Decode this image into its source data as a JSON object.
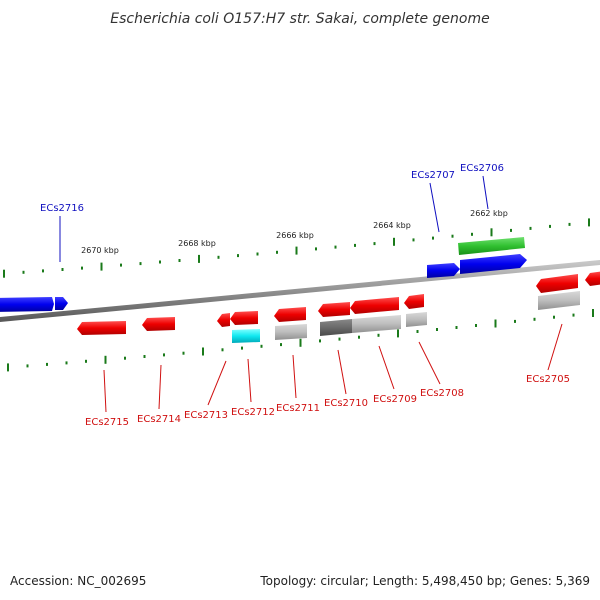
{
  "title": "Escherichia coli O157:H7 str. Sakai, complete genome",
  "footer": {
    "accession": "Accession: NC_002695",
    "summary": "Topology: circular; Length: 5,498,450 bp; Genes: 5,369"
  },
  "colors": {
    "forward_label": "#1010c0",
    "reverse_label": "#d01010",
    "ruler": "#1a7a1a",
    "backbone": "#888888"
  },
  "ruler_labels": [
    {
      "text": "2670 kbp"
    },
    {
      "text": "2668 kbp"
    },
    {
      "text": "2666 kbp"
    },
    {
      "text": "2664 kbp"
    },
    {
      "text": "2662 kbp"
    }
  ],
  "genes": [
    {
      "id": "ECs2716",
      "strand": "forward"
    },
    {
      "id": "ECs2707",
      "strand": "forward"
    },
    {
      "id": "ECs2706",
      "strand": "forward"
    },
    {
      "id": "ECs2715",
      "strand": "reverse"
    },
    {
      "id": "ECs2714",
      "strand": "reverse"
    },
    {
      "id": "ECs2713",
      "strand": "reverse"
    },
    {
      "id": "ECs2712",
      "strand": "reverse"
    },
    {
      "id": "ECs2711",
      "strand": "reverse"
    },
    {
      "id": "ECs2710",
      "strand": "reverse"
    },
    {
      "id": "ECs2709",
      "strand": "reverse"
    },
    {
      "id": "ECs2708",
      "strand": "reverse"
    },
    {
      "id": "ECs2705",
      "strand": "reverse"
    }
  ]
}
